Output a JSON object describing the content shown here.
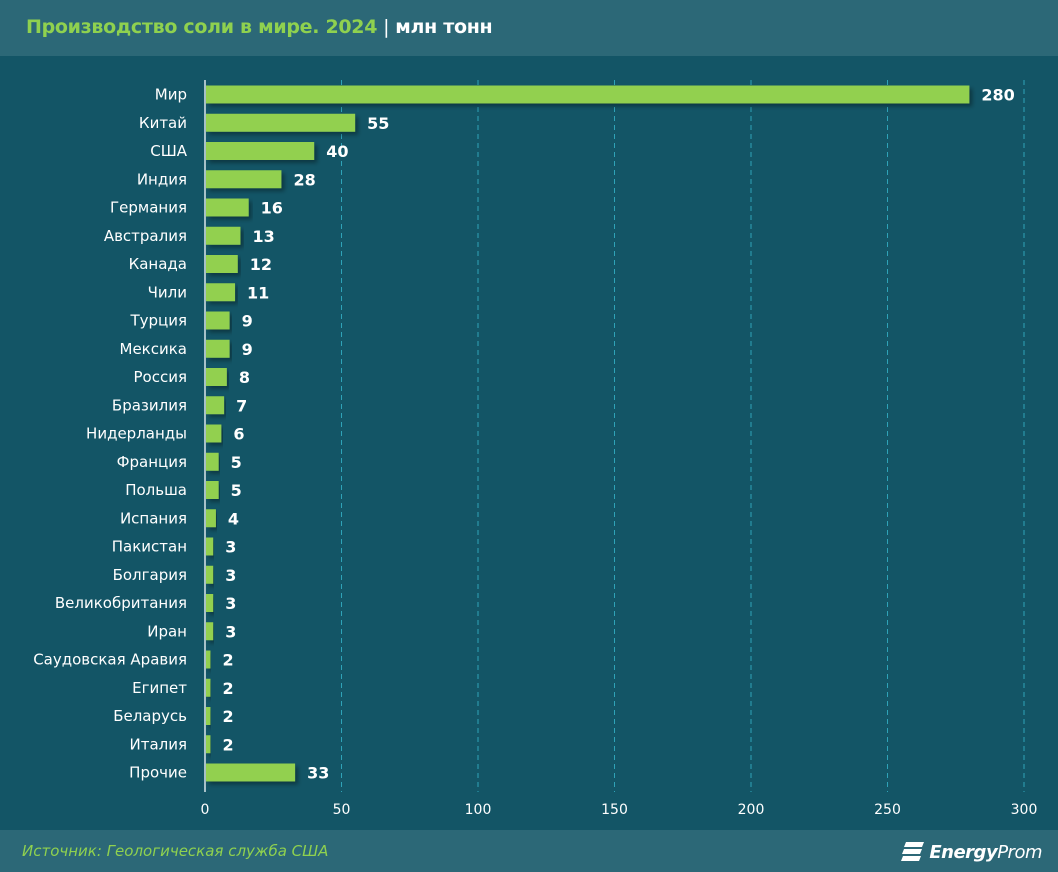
{
  "header": {
    "title": "Производство соли в мире. 2024",
    "separator": "|",
    "unit": "млн тонн"
  },
  "footer": {
    "source": "Источник: Геологическая служба США",
    "logo_bold": "Energy",
    "logo_light": "Prom"
  },
  "colors": {
    "bar": "#92d050",
    "accent_text": "#8fd14f",
    "background": "#135566",
    "header_bg": "#2c6877",
    "grid": "#2fa3b8"
  },
  "chart_data": {
    "type": "bar",
    "orientation": "horizontal",
    "title": "Производство соли в мире. 2024",
    "unit": "млн тонн",
    "xlabel": "",
    "ylabel": "",
    "categories": [
      "Мир",
      "Китай",
      "США",
      "Индия",
      "Германия",
      "Австралия",
      "Канада",
      "Чили",
      "Турция",
      "Мексика",
      "Россия",
      "Бразилия",
      "Нидерланды",
      "Франция",
      "Польша",
      "Испания",
      "Пакистан",
      "Болгария",
      "Великобритания",
      "Иран",
      "Саудовская Аравия",
      "Египет",
      "Беларусь",
      "Италия",
      "Прочие"
    ],
    "values": [
      280,
      55,
      40,
      28,
      16,
      13,
      12,
      11,
      9,
      9,
      8,
      7,
      6,
      5,
      5,
      4,
      3,
      3,
      3,
      3,
      2,
      2,
      2,
      2,
      33
    ],
    "xlim": [
      0,
      300
    ],
    "xticks": [
      0,
      50,
      100,
      150,
      200,
      250,
      300
    ],
    "grid": "vertical dashed",
    "data_labels": true,
    "legend": "none"
  }
}
